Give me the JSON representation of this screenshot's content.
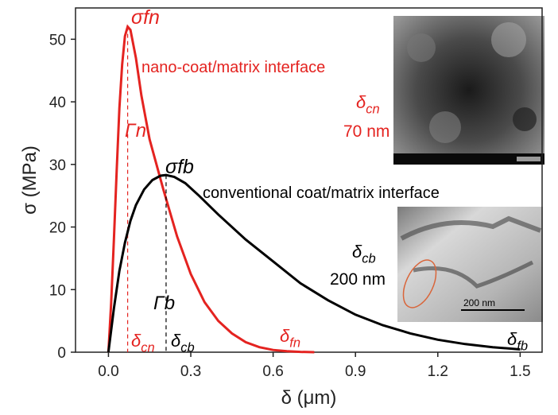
{
  "chart_data": {
    "type": "line",
    "x_label": "δ (μm)",
    "y_label": "σ (MPa)",
    "xlim": [
      -0.12,
      1.58
    ],
    "ylim": [
      0,
      55
    ],
    "xticks": [
      {
        "value": 0,
        "label": "0.0"
      },
      0.3,
      0.6,
      0.9,
      1.2,
      1.5
    ],
    "yticks": [
      0,
      10,
      20,
      30,
      40,
      50
    ],
    "series": [
      {
        "color": "#e42320",
        "x": [
          0,
          0.01,
          0.02,
          0.03,
          0.04,
          0.05,
          0.06,
          0.07,
          0.08,
          0.1,
          0.12,
          0.15,
          0.2,
          0.25,
          0.3,
          0.35,
          0.4,
          0.45,
          0.5,
          0.55,
          0.6,
          0.65,
          0.7,
          0.75
        ],
        "values": [
          0,
          8,
          18,
          29,
          39,
          46,
          50.5,
          52,
          51.5,
          47,
          41,
          34,
          26,
          18.5,
          12.5,
          8,
          5,
          3,
          1.6,
          0.8,
          0.35,
          0.15,
          0.05,
          0
        ]
      },
      {
        "color": "#000000",
        "x": [
          0,
          0.02,
          0.04,
          0.06,
          0.08,
          0.1,
          0.13,
          0.16,
          0.19,
          0.21,
          0.24,
          0.28,
          0.33,
          0.4,
          0.5,
          0.6,
          0.7,
          0.8,
          0.9,
          1.0,
          1.1,
          1.2,
          1.3,
          1.4,
          1.5
        ],
        "values": [
          0,
          7,
          13,
          17.5,
          21,
          23.5,
          26,
          27.5,
          28.2,
          28.3,
          28,
          27,
          25,
          22,
          18,
          14.5,
          11,
          8.3,
          6,
          4.3,
          3,
          2,
          1.3,
          0.8,
          0.45
        ]
      }
    ],
    "annotations": [
      {
        "text": "σfn",
        "color": "#e42320"
      },
      {
        "text": "nano-coat/matrix interface",
        "color": "#e42320"
      },
      {
        "text": "δ",
        "sub": "cn",
        "color": "#e42320"
      },
      {
        "text": "70 nm",
        "color": "#e42320"
      },
      {
        "text": "σfb",
        "color": "#000000"
      },
      {
        "text": "conventional coat/matrix interface",
        "color": "#000000"
      },
      {
        "text": "δ",
        "sub": "cb",
        "color": "#000000"
      },
      {
        "text": "200 nm",
        "color": "#000000"
      },
      {
        "text": "Γn",
        "color": "#e42320"
      },
      {
        "text": "Γb",
        "color": "#000000"
      },
      {
        "text": "δ",
        "sub": "cn",
        "color": "#e42320"
      },
      {
        "text": "δ",
        "sub": "cb",
        "color": "#000000"
      },
      {
        "text": "δ",
        "sub": "fn",
        "color": "#e42320"
      },
      {
        "text": "δ",
        "sub": "fb",
        "color": "#000000"
      },
      {
        "text": "200 nm",
        "color": "#000000"
      }
    ]
  }
}
